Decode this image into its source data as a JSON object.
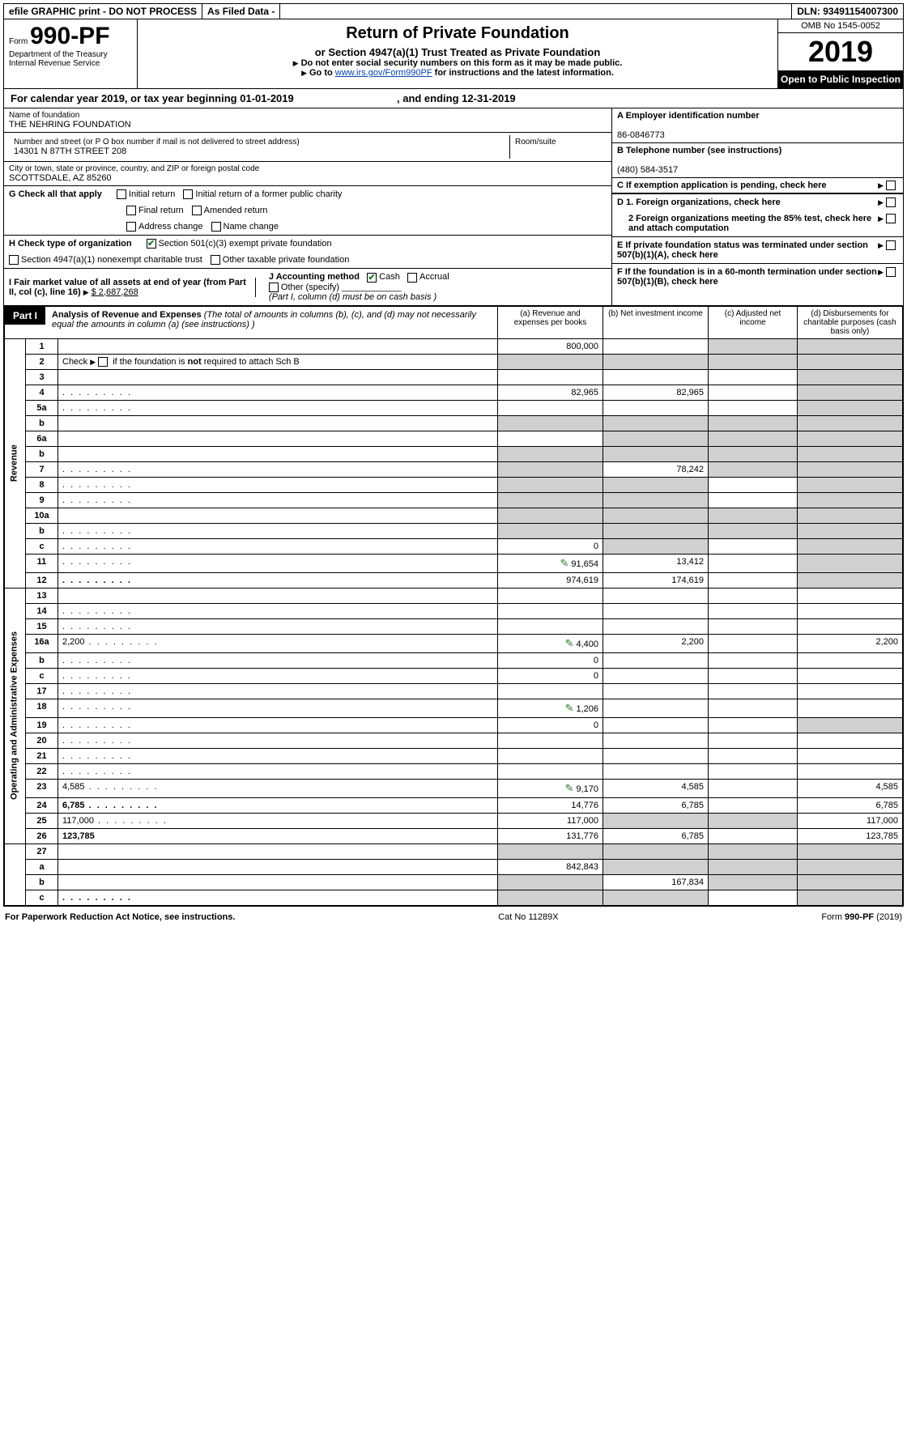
{
  "topbar": {
    "efile": "efile GRAPHIC print - DO NOT PROCESS",
    "asfiled": "As Filed Data -",
    "dln": "DLN: 93491154007300"
  },
  "form": {
    "form_label": "Form",
    "form_no": "990-PF",
    "dept": "Department of the Treasury",
    "irs": "Internal Revenue Service"
  },
  "title": {
    "main": "Return of Private Foundation",
    "sub": "or Section 4947(a)(1) Trust Treated as Private Foundation",
    "warn": "Do not enter social security numbers on this form as it may be made public.",
    "goto": "Go to",
    "goto_link": "www.irs.gov/Form990PF",
    "goto_tail": "for instructions and the latest information."
  },
  "yearbox": {
    "omb": "OMB No 1545-0052",
    "year": "2019",
    "open": "Open to Public Inspection"
  },
  "cal": {
    "pre": "For calendar year 2019, or tax year beginning ",
    "begin": "01-01-2019",
    "mid": " , and ending ",
    "end": "12-31-2019"
  },
  "left": {
    "name_lbl": "Name of foundation",
    "name": "THE NEHRING FOUNDATION",
    "addr_lbl": "Number and street (or P O  box number if mail is not delivered to street address)",
    "addr": "14301 N 87TH STREET 208",
    "room_lbl": "Room/suite",
    "city_lbl": "City or town, state or province, country, and ZIP or foreign postal code",
    "city": "SCOTTSDALE, AZ  85260"
  },
  "right": {
    "a_lbl": "A Employer identification number",
    "a_val": "86-0846773",
    "b_lbl": "B Telephone number (see instructions)",
    "b_val": "(480) 584-3517",
    "c_lbl": "C If exemption application is pending, check here"
  },
  "g": {
    "lead": "G Check all that apply",
    "o1": "Initial return",
    "o2": "Initial return of a former public charity",
    "o3": "Final return",
    "o4": "Amended return",
    "o5": "Address change",
    "o6": "Name change"
  },
  "h": {
    "lead": "H Check type of organization",
    "o1": "Section 501(c)(3) exempt private foundation",
    "o2": "Section 4947(a)(1) nonexempt charitable trust",
    "o3": "Other taxable private foundation"
  },
  "d": {
    "d1": "D 1. Foreign organizations, check here",
    "d2": "2 Foreign organizations meeting the 85% test, check here and attach computation",
    "e": "E  If private foundation status was terminated under section 507(b)(1)(A), check here",
    "f": "F  If the foundation is in a 60-month termination under section 507(b)(1)(B), check here"
  },
  "ij": {
    "i": "I Fair market value of all assets at end of year (from Part II, col  (c), line 16)",
    "i_val": "$  2,687,268",
    "j": "J Accounting method",
    "j_cash": "Cash",
    "j_acc": "Accrual",
    "j_other": "Other (specify)",
    "j_note": "(Part I, column (d) must be on cash basis )"
  },
  "part1": {
    "tag": "Part I",
    "title": "Analysis of Revenue and Expenses",
    "title_tail": "(The total of amounts in columns (b), (c), and (d) may not necessarily equal the amounts in column (a) (see instructions) )",
    "col_a": "(a)   Revenue and expenses per books",
    "col_b": "(b)  Net investment income",
    "col_c": "(c)  Adjusted net income",
    "col_d": "(d)  Disbursements for charitable purposes (cash basis only)"
  },
  "side": {
    "rev": "Revenue",
    "exp": "Operating and Administrative Expenses"
  },
  "rows": [
    {
      "n": "1",
      "d": "",
      "a": "800,000",
      "b": "",
      "c": "",
      "icon": false,
      "shade_c": true,
      "shade_d": true
    },
    {
      "n": "2",
      "d_html": "Check <span class='arrow'></span><span class='cb'></span> if the foundation is <b>not</b> required to attach Sch  B",
      "a": "",
      "b": "",
      "c": "",
      "d": "",
      "shade_a": true,
      "shade_b": true,
      "shade_c": true,
      "shade_d": true
    },
    {
      "n": "3",
      "d": "",
      "a": "",
      "b": "",
      "c": "",
      "shade_d": true
    },
    {
      "n": "4",
      "d": "",
      "dots": true,
      "a": "82,965",
      "b": "82,965",
      "c": "",
      "shade_d": true
    },
    {
      "n": "5a",
      "d": "",
      "dots": true,
      "a": "",
      "b": "",
      "c": "",
      "shade_d": true
    },
    {
      "n": "b",
      "d": "",
      "a": "",
      "b": "",
      "c": "",
      "shade_a": true,
      "shade_b": true,
      "shade_c": true,
      "shade_d": true
    },
    {
      "n": "6a",
      "d": "",
      "a": "",
      "b": "",
      "c": "",
      "shade_b": true,
      "shade_c": true,
      "shade_d": true
    },
    {
      "n": "b",
      "d": "",
      "a": "",
      "b": "",
      "c": "",
      "shade_a": true,
      "shade_b": true,
      "shade_c": true,
      "shade_d": true
    },
    {
      "n": "7",
      "d": "",
      "dots": true,
      "a": "",
      "b": "78,242",
      "c": "",
      "shade_a": true,
      "shade_c": true,
      "shade_d": true
    },
    {
      "n": "8",
      "d": "",
      "dots": true,
      "a": "",
      "b": "",
      "c": "",
      "shade_a": true,
      "shade_b": true,
      "shade_d": true
    },
    {
      "n": "9",
      "d": "",
      "dots": true,
      "a": "",
      "b": "",
      "c": "",
      "shade_a": true,
      "shade_b": true,
      "shade_d": true
    },
    {
      "n": "10a",
      "d": "",
      "a": "",
      "b": "",
      "c": "",
      "shade_a": true,
      "shade_b": true,
      "shade_c": true,
      "shade_d": true
    },
    {
      "n": "b",
      "d": "",
      "dots": true,
      "a": "",
      "b": "",
      "c": "",
      "shade_a": true,
      "shade_b": true,
      "shade_c": true,
      "shade_d": true
    },
    {
      "n": "c",
      "d": "",
      "dots": true,
      "a": "0",
      "b": "",
      "c": "",
      "shade_b": true,
      "shade_d": true
    },
    {
      "n": "11",
      "d": "",
      "dots": true,
      "icon": true,
      "a": "91,654",
      "b": "13,412",
      "c": "",
      "shade_d": true
    },
    {
      "n": "12",
      "d": "",
      "dots": true,
      "bold": true,
      "a": "974,619",
      "b": "174,619",
      "c": "",
      "shade_d": true
    }
  ],
  "exp_rows": [
    {
      "n": "13",
      "d": "",
      "a": "",
      "b": "",
      "c": ""
    },
    {
      "n": "14",
      "d": "",
      "dots": true,
      "a": "",
      "b": "",
      "c": ""
    },
    {
      "n": "15",
      "d": "",
      "dots": true,
      "a": "",
      "b": "",
      "c": ""
    },
    {
      "n": "16a",
      "d": "2,200",
      "dots": true,
      "icon": true,
      "a": "4,400",
      "b": "2,200",
      "c": ""
    },
    {
      "n": "b",
      "d": "",
      "dots": true,
      "a": "0",
      "b": "",
      "c": ""
    },
    {
      "n": "c",
      "d": "",
      "dots": true,
      "a": "0",
      "b": "",
      "c": ""
    },
    {
      "n": "17",
      "d": "",
      "dots": true,
      "a": "",
      "b": "",
      "c": ""
    },
    {
      "n": "18",
      "d": "",
      "dots": true,
      "icon": true,
      "a": "1,206",
      "b": "",
      "c": ""
    },
    {
      "n": "19",
      "d": "",
      "dots": true,
      "a": "0",
      "b": "",
      "c": "",
      "shade_d": true
    },
    {
      "n": "20",
      "d": "",
      "dots": true,
      "a": "",
      "b": "",
      "c": ""
    },
    {
      "n": "21",
      "d": "",
      "dots": true,
      "a": "",
      "b": "",
      "c": ""
    },
    {
      "n": "22",
      "d": "",
      "dots": true,
      "a": "",
      "b": "",
      "c": ""
    },
    {
      "n": "23",
      "d": "4,585",
      "dots": true,
      "icon": true,
      "a": "9,170",
      "b": "4,585",
      "c": ""
    },
    {
      "n": "24",
      "d": "6,785",
      "dots": true,
      "bold": true,
      "a": "14,776",
      "b": "6,785",
      "c": ""
    },
    {
      "n": "25",
      "d": "117,000",
      "dots": true,
      "a": "117,000",
      "b": "",
      "c": "",
      "shade_b": true,
      "shade_c": true
    },
    {
      "n": "26",
      "d": "123,785",
      "bold": true,
      "a": "131,776",
      "b": "6,785",
      "c": ""
    }
  ],
  "net_rows": [
    {
      "n": "27",
      "d": "",
      "a": "",
      "b": "",
      "c": "",
      "shade_a": true,
      "shade_b": true,
      "shade_c": true,
      "shade_d": true
    },
    {
      "n": "a",
      "d": "",
      "bold": true,
      "a": "842,843",
      "b": "",
      "c": "",
      "shade_b": true,
      "shade_c": true,
      "shade_d": true
    },
    {
      "n": "b",
      "d": "",
      "bold": true,
      "a": "",
      "b": "167,834",
      "c": "",
      "shade_a": true,
      "shade_c": true,
      "shade_d": true
    },
    {
      "n": "c",
      "d": "",
      "dots": true,
      "bold": true,
      "a": "",
      "b": "",
      "c": "",
      "shade_a": true,
      "shade_b": true,
      "shade_d": true
    }
  ],
  "footer": {
    "left": "For Paperwork Reduction Act Notice, see instructions.",
    "mid": "Cat  No  11289X",
    "right": "Form 990-PF (2019)"
  }
}
